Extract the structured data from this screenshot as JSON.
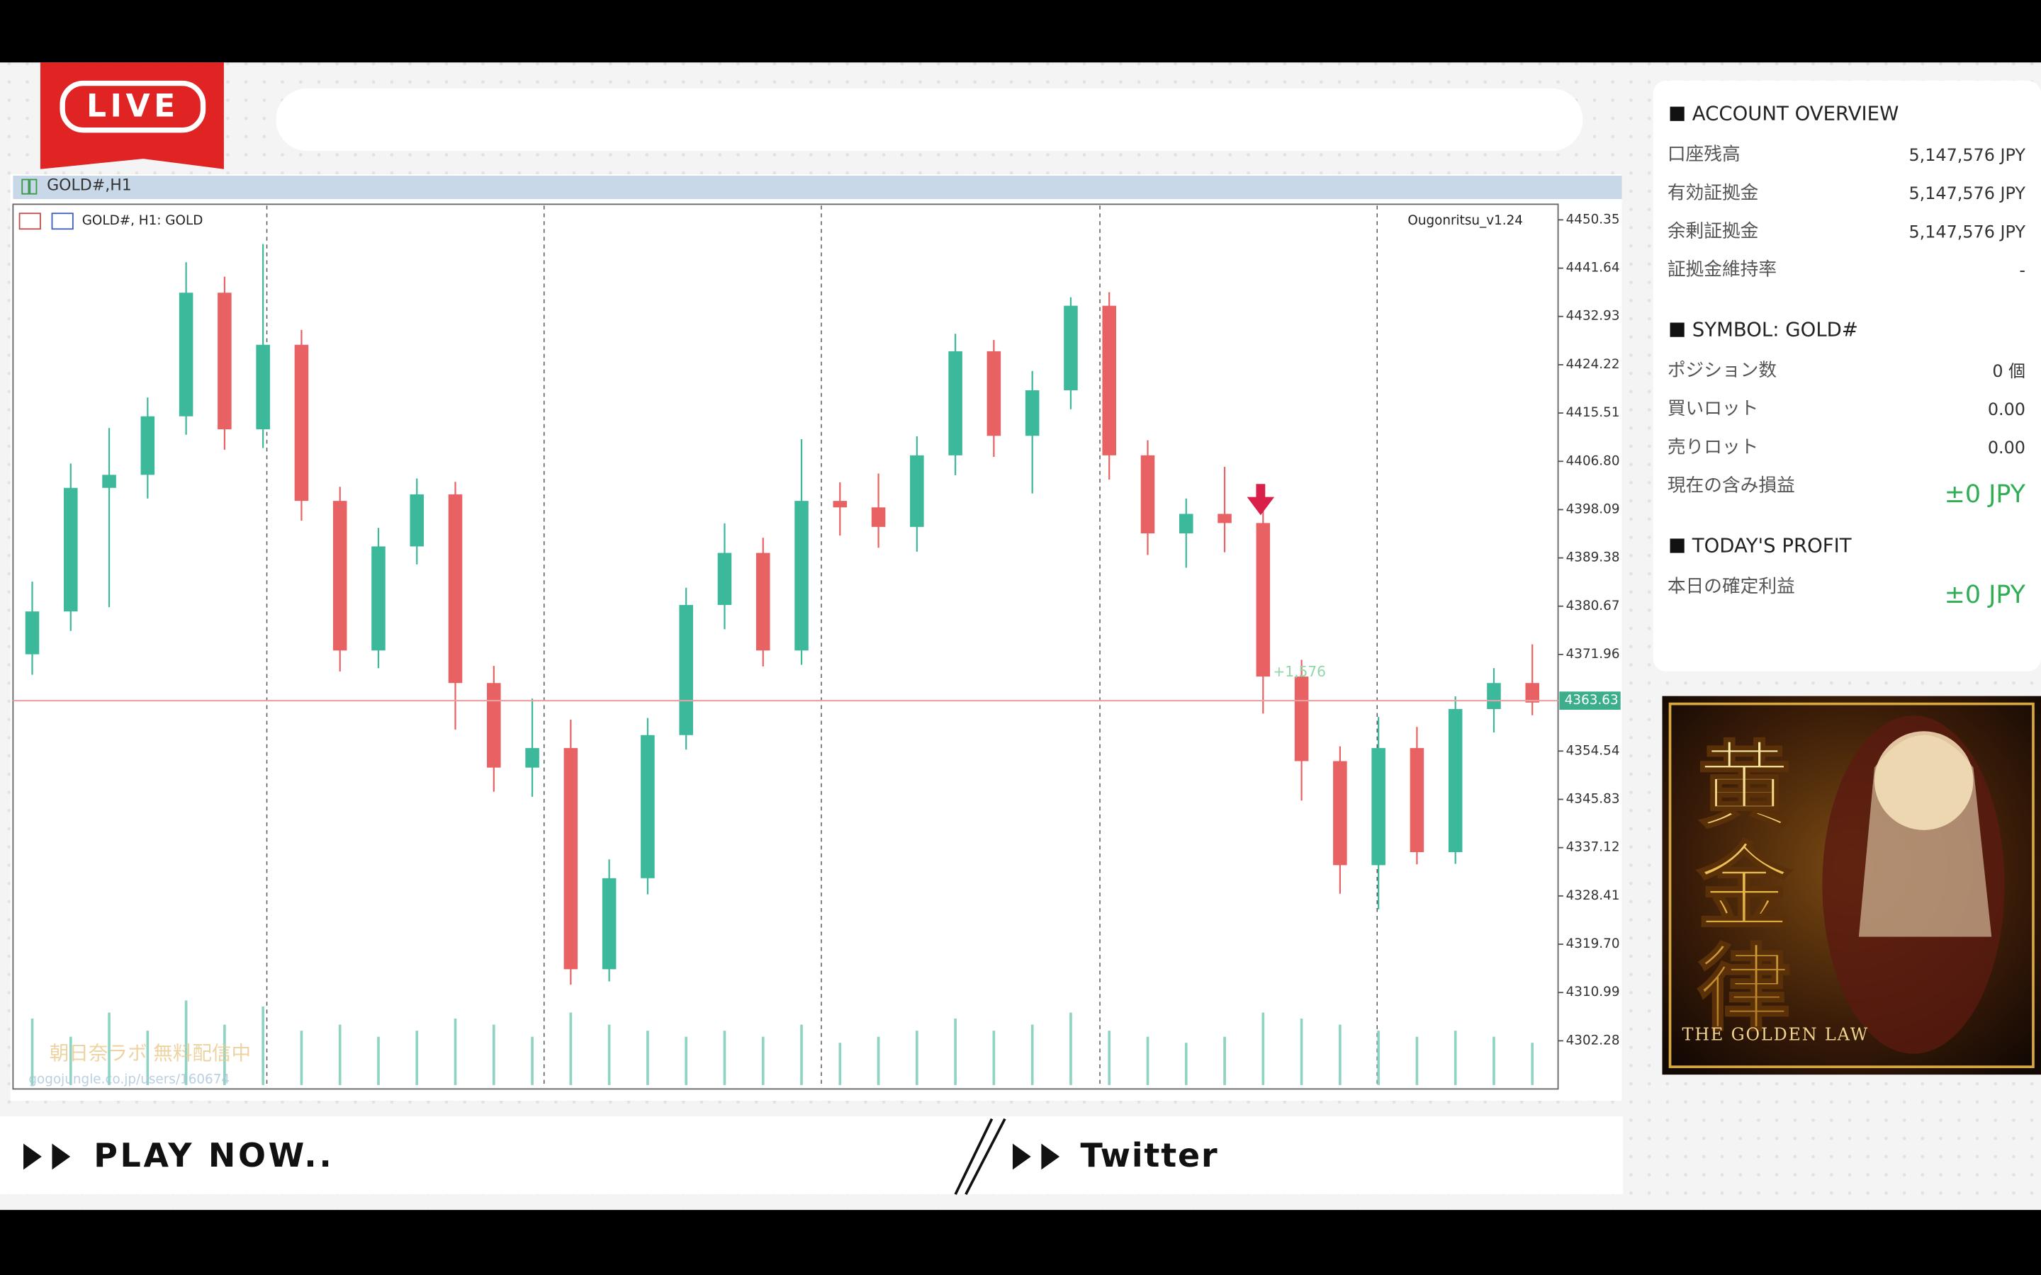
{
  "overlay": {
    "live": "LIVE",
    "play_now": "PLAY NOW..",
    "twitter": "Twitter"
  },
  "chart_window": {
    "title": "GOLD#,H1",
    "symbol_label": "GOLD#, H1:  GOLD",
    "indicator": "Ougonritsu_v1.24",
    "trade_label": "+1,576",
    "watermark": [
      "朝日奈ラボ 無料配信中",
      "gogojungle.co.jp/users/160674"
    ]
  },
  "chart_data": {
    "type": "candlestick",
    "up_color": "#3cb89b",
    "down_color": "#e86163",
    "volume_color": "#8fd3c3",
    "ylim": [
      4293.83,
      4452.93
    ],
    "yticks": [
      4450.35,
      4441.64,
      4432.93,
      4424.22,
      4415.51,
      {
        "value": 4406.8,
        "label": "4406.80"
      },
      4398.09,
      4389.38,
      4380.67,
      4371.96,
      4354.54,
      4345.83,
      4337.12,
      4328.41,
      {
        "value": 4319.7,
        "label": "4319.70"
      },
      4310.99,
      4302.28
    ],
    "current_price": 4363.63,
    "current_price_color": "#e8a0a0",
    "open": [
      4372.0,
      4379.72,
      4402.01,
      4404.36,
      4414.92,
      4437.21,
      4412.57,
      4427.82,
      4399.66,
      4372.68,
      4391.45,
      4400.84,
      4366.81,
      4351.56,
      4355.08,
      4315.19,
      4331.61,
      4357.42,
      4380.89,
      4390.28,
      4372.68,
      4399.66,
      4398.49,
      4394.97,
      4407.88,
      4426.65,
      4411.4,
      4419.61,
      4434.86,
      4407.88,
      4393.8,
      4397.32,
      4395.67,
      4367.98,
      4352.73,
      4333.96,
      4355.08,
      4336.31,
      4362.12,
      4366.81
    ],
    "high": [
      4385.1,
      4406.4,
      4412.8,
      4418.3,
      4442.7,
      4440.1,
      4446.0,
      4430.5,
      4402.2,
      4394.8,
      4403.7,
      4403.1,
      4369.9,
      4364.0,
      4360.2,
      4335.0,
      4360.5,
      4384.0,
      4395.6,
      4393.0,
      4410.8,
      4403.0,
      4404.6,
      4411.3,
      4429.8,
      4428.7,
      4423.1,
      4436.4,
      4437.3,
      4410.6,
      4400.1,
      4405.8,
      4398.2,
      4371.0,
      4355.4,
      4360.7,
      4358.9,
      4364.4,
      4369.5,
      4373.8
    ],
    "low": [
      4368.3,
      4376.2,
      4380.5,
      4400.1,
      4411.6,
      4408.9,
      4409.2,
      4396.1,
      4368.9,
      4369.5,
      4388.2,
      4358.4,
      4347.2,
      4346.3,
      4312.4,
      4313.0,
      4328.7,
      4354.8,
      4376.5,
      4369.8,
      4370.1,
      4393.4,
      4391.2,
      4390.5,
      4404.3,
      4407.6,
      4401.0,
      4416.2,
      4403.5,
      4389.9,
      4387.6,
      4390.4,
      4361.3,
      4345.6,
      4328.8,
      4326.0,
      4334.1,
      4334.2,
      4357.9,
      4361.0
    ],
    "close": [
      4379.72,
      4402.01,
      4404.36,
      4414.92,
      4437.21,
      4412.57,
      4427.82,
      4399.66,
      4372.68,
      4391.45,
      4400.84,
      4366.81,
      4351.56,
      4355.08,
      4315.19,
      4331.61,
      4357.42,
      4380.89,
      4390.28,
      4372.68,
      4399.66,
      4398.49,
      4394.97,
      4407.88,
      4426.65,
      4411.4,
      4419.61,
      4434.86,
      4407.88,
      4393.8,
      4397.32,
      4395.67,
      4367.98,
      4352.73,
      4333.96,
      4355.08,
      4336.31,
      4362.12,
      4366.81,
      4363.29
    ],
    "volume": [
      55,
      40,
      60,
      45,
      70,
      50,
      65,
      45,
      50,
      40,
      45,
      55,
      50,
      40,
      60,
      50,
      45,
      40,
      45,
      40,
      50,
      35,
      40,
      45,
      55,
      45,
      50,
      60,
      45,
      40,
      35,
      40,
      60,
      55,
      50,
      45,
      40,
      45,
      40,
      35
    ]
  },
  "account": {
    "sections": [
      {
        "title": "ACCOUNT OVERVIEW",
        "rows": [
          [
            "口座残高",
            "5,147,576 JPY"
          ],
          [
            "有効証拠金",
            "5,147,576 JPY"
          ],
          [
            "余剰証拠金",
            "5,147,576 JPY"
          ],
          [
            "証拠金維持率",
            "-"
          ]
        ]
      },
      {
        "title": "SYMBOL: GOLD#",
        "rows": [
          [
            "ポジション数",
            "0 個"
          ],
          [
            "買いロット",
            "0.00"
          ],
          [
            "売りロット",
            "0.00"
          ],
          [
            "現在の含み損益",
            "±0 JPY"
          ]
        ]
      },
      {
        "title": "TODAY'S PROFIT",
        "rows": [
          [
            "本日の確定利益",
            "±0 JPY"
          ]
        ]
      }
    ]
  },
  "banner": {
    "title": "黄金律",
    "subtitle": "THE GOLDEN LAW"
  }
}
